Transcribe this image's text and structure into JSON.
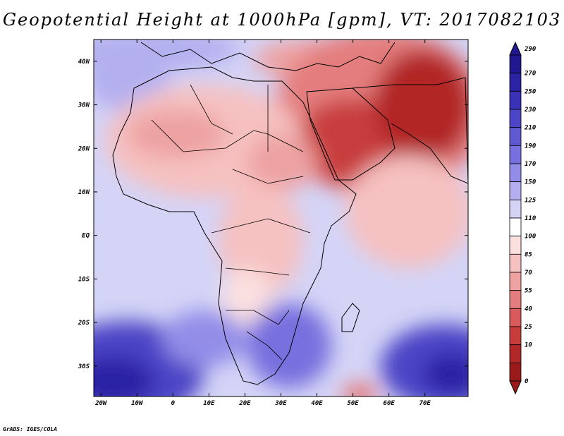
{
  "title": "Geopotential Height at 1000hPa [gpm], VT: 2017082103",
  "footer": "GrADS: IGES/COLA",
  "map": {
    "lon_range": [
      -22,
      82
    ],
    "lat_range": [
      -37,
      45
    ],
    "lon_ticks": [
      {
        "value": -20,
        "label": "20W"
      },
      {
        "value": -10,
        "label": "10W"
      },
      {
        "value": 0,
        "label": "0"
      },
      {
        "value": 10,
        "label": "10E"
      },
      {
        "value": 20,
        "label": "20E"
      },
      {
        "value": 30,
        "label": "30E"
      },
      {
        "value": 40,
        "label": "40E"
      },
      {
        "value": 50,
        "label": "50E"
      },
      {
        "value": 60,
        "label": "60E"
      },
      {
        "value": 70,
        "label": "70E"
      }
    ],
    "lat_ticks": [
      {
        "value": 40,
        "label": "40N"
      },
      {
        "value": 30,
        "label": "30N"
      },
      {
        "value": 20,
        "label": "20N"
      },
      {
        "value": 10,
        "label": "10N"
      },
      {
        "value": 0,
        "label": "EQ"
      },
      {
        "value": -10,
        "label": "10S"
      },
      {
        "value": -20,
        "label": "20S"
      },
      {
        "value": -30,
        "label": "30S"
      }
    ]
  },
  "colorbar": {
    "levels": [
      {
        "label": "290",
        "color": "#21178f"
      },
      {
        "label": "270",
        "color": "#2c22a4"
      },
      {
        "label": "250",
        "color": "#3a31b8"
      },
      {
        "label": "230",
        "color": "#4c45c6"
      },
      {
        "label": "210",
        "color": "#6159d2"
      },
      {
        "label": "190",
        "color": "#7870de"
      },
      {
        "label": "170",
        "color": "#938de8"
      },
      {
        "label": "150",
        "color": "#b4b0f0"
      },
      {
        "label": "125",
        "color": "#d4d4f7"
      },
      {
        "label": "110",
        "color": "#ffffff"
      },
      {
        "label": "100",
        "color": "#fbe0e0"
      },
      {
        "label": "85",
        "color": "#f6c1c1"
      },
      {
        "label": "70",
        "color": "#eea2a2"
      },
      {
        "label": "55",
        "color": "#e47e7e"
      },
      {
        "label": "40",
        "color": "#d85a5a"
      },
      {
        "label": "25",
        "color": "#c83c3c"
      },
      {
        "label": "10",
        "color": "#b22828"
      },
      {
        "label": "0",
        "color": "#9a1a1a"
      }
    ]
  }
}
